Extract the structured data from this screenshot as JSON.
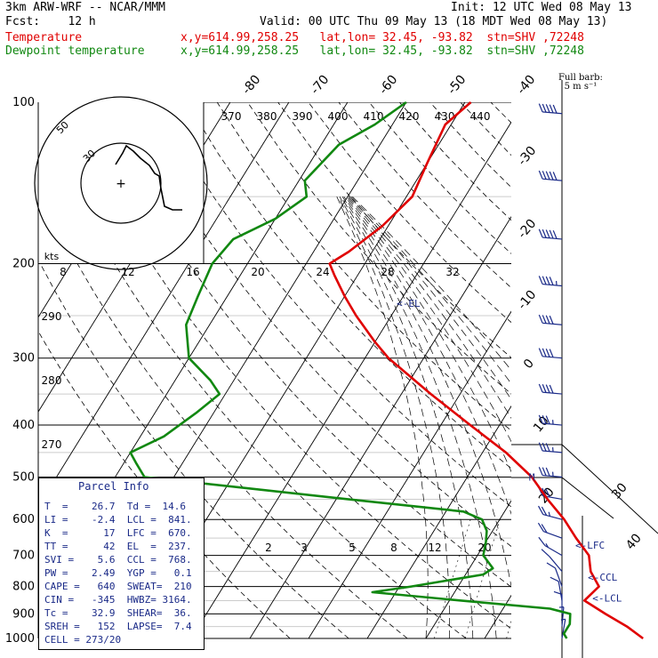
{
  "header": {
    "model": "3km ARW-WRF -- NCAR/MMM",
    "init": "Init: 12 UTC Wed 08 May 13",
    "fcst": "Fcst:    12 h",
    "valid": "Valid: 00 UTC Thu 09 May 13 (18 MDT Wed 08 May 13)",
    "temp_label": "Temperature",
    "dew_label": "Dewpoint temperature",
    "temp_info": "x,y=614.99,258.25   lat,lon= 32.45, -93.82  stn=SHV ,72248",
    "dew_info": "x,y=614.99,258.25   lat,lon= 32.45, -93.82  stn=SHV ,72248"
  },
  "barb_legend": {
    "line1": "Full barb:",
    "line2": "5 m s⁻¹"
  },
  "parcel_info": {
    "title": "Parcel Info",
    "rows": [
      "T  =    26.7  Td =  14.6",
      "LI =    -2.4  LCL =  841.",
      "K  =      17  LFC =  670.",
      "TT =      42  EL  =  237.",
      "SVI =    5.6  CCL =  768.",
      "PW =    2.49  YGP =   0.1",
      "CAPE =   640  SWEAT=  210",
      "CIN =   -345  HWBZ= 3164.",
      "Tc =    32.9  SHEAR=  36.",
      "SREH =   152  LAPSE=  7.4",
      "CELL = 273/20"
    ]
  },
  "hodograph": {
    "ring_labels": [
      "50",
      "30"
    ],
    "kts_label": "kts",
    "center_mark": "+"
  },
  "chart_data": {
    "type": "line",
    "title": "",
    "xlabel": "",
    "ylabel": "",
    "pressure_levels": [
      100,
      200,
      300,
      400,
      500,
      600,
      700,
      800,
      900,
      1000
    ],
    "isotherm_labels": [
      "-80",
      "-70",
      "-60",
      "-50",
      "-40",
      "-30",
      "-20",
      "-10",
      "0",
      "10",
      "20",
      "30",
      "40"
    ],
    "theta_labels": [
      "370",
      "380",
      "390",
      "400",
      "410",
      "420",
      "430",
      "440"
    ],
    "theta_left_labels": [
      "290",
      "280",
      "270"
    ],
    "mixing_ratio_labels": [
      "8",
      "12",
      "16",
      "20",
      "24",
      "28",
      "32"
    ],
    "mixing_ratio_low_labels": [
      "2",
      "3",
      "5",
      "8",
      "12",
      "20"
    ],
    "level_markers": [
      {
        "label": "<-EL",
        "p": 237,
        "T": -51
      },
      {
        "label": "<-LFC",
        "p": 670,
        "T": 5
      },
      {
        "label": "<-CCL",
        "p": 768,
        "T": 10.5
      },
      {
        "label": "<-LCL",
        "p": 841,
        "T": 13.5
      }
    ],
    "m_marker": {
      "label": "M",
      "p": 500,
      "T": -9
    },
    "series": [
      {
        "name": "Temperature",
        "color": "#e00000",
        "p": [
          100,
          110,
          130,
          150,
          170,
          190,
          200,
          210,
          230,
          250,
          280,
          300,
          350,
          400,
          450,
          500,
          550,
          600,
          650,
          700,
          750,
          800,
          850,
          900,
          950,
          1000
        ],
        "T": [
          -59,
          -61,
          -60,
          -59,
          -61,
          -64,
          -66,
          -64,
          -60,
          -56,
          -50,
          -46,
          -35,
          -25,
          -16,
          -9,
          -4,
          1,
          5,
          9,
          11,
          14,
          13,
          18,
          23,
          27
        ]
      },
      {
        "name": "Dewpoint temperature",
        "color": "#118811",
        "p": [
          100,
          110,
          120,
          140,
          150,
          165,
          180,
          200,
          230,
          260,
          300,
          330,
          350,
          380,
          420,
          450,
          470,
          500,
          550,
          580,
          600,
          630,
          660,
          700,
          740,
          760,
          800,
          820,
          850,
          880,
          900,
          940,
          960,
          980,
          1000
        ],
        "T": [
          -70,
          -73,
          -77,
          -79,
          -77,
          -80,
          -85,
          -86,
          -85,
          -84,
          -80,
          -74,
          -71,
          -73,
          -76,
          -80,
          -78,
          -75,
          -38,
          -17,
          -13,
          -11,
          -10,
          -9,
          -6,
          -7,
          -18,
          -24,
          -8,
          8,
          12,
          13,
          13,
          13,
          14
        ]
      }
    ],
    "wind_barbs_m_s": [
      {
        "p": 105,
        "dir": 265,
        "spd": 25
      },
      {
        "p": 140,
        "dir": 265,
        "spd": 27
      },
      {
        "p": 180,
        "dir": 265,
        "spd": 25
      },
      {
        "p": 220,
        "dir": 265,
        "spd": 23
      },
      {
        "p": 260,
        "dir": 265,
        "spd": 22
      },
      {
        "p": 300,
        "dir": 265,
        "spd": 21
      },
      {
        "p": 350,
        "dir": 265,
        "spd": 20
      },
      {
        "p": 400,
        "dir": 265,
        "spd": 19
      },
      {
        "p": 450,
        "dir": 265,
        "spd": 18
      },
      {
        "p": 500,
        "dir": 265,
        "spd": 18
      },
      {
        "p": 550,
        "dir": 260,
        "spd": 16
      },
      {
        "p": 600,
        "dir": 255,
        "spd": 13
      },
      {
        "p": 650,
        "dir": 250,
        "spd": 10
      },
      {
        "p": 700,
        "dir": 240,
        "spd": 8
      },
      {
        "p": 750,
        "dir": 220,
        "spd": 6
      },
      {
        "p": 800,
        "dir": 200,
        "spd": 5
      },
      {
        "p": 850,
        "dir": 190,
        "spd": 5
      },
      {
        "p": 900,
        "dir": 180,
        "spd": 5
      },
      {
        "p": 950,
        "dir": 175,
        "spd": 4
      },
      {
        "p": 1000,
        "dir": 170,
        "spd": 3
      }
    ]
  }
}
